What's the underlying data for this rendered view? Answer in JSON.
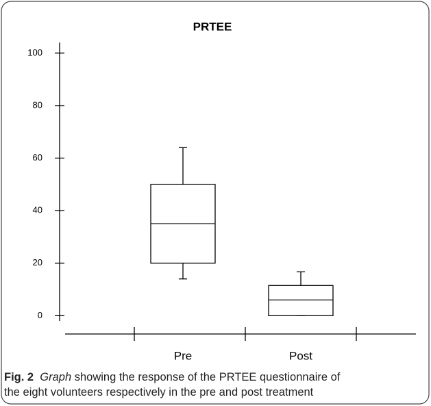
{
  "chart_data": {
    "type": "box",
    "title": "PRTEE",
    "categories": [
      "Pre",
      "Post"
    ],
    "boxes": [
      {
        "min": 14,
        "q1": 20,
        "median": 35,
        "q3": 50,
        "max": 64
      },
      {
        "min": 0,
        "q1": 0,
        "median": 6,
        "q3": 11.5,
        "max": 16.7
      }
    ],
    "color": "#000000",
    "ylim": [
      -2,
      104
    ],
    "yticks": [
      0,
      20,
      40,
      60,
      80,
      100
    ],
    "grid": false
  },
  "caption": {
    "label": "Fig. 2",
    "emphasis": "Graph",
    "line1": "showing the response of the PRTEE questionnaire of",
    "line2": "the eight volunteers respectively in the pre and post treatment"
  }
}
